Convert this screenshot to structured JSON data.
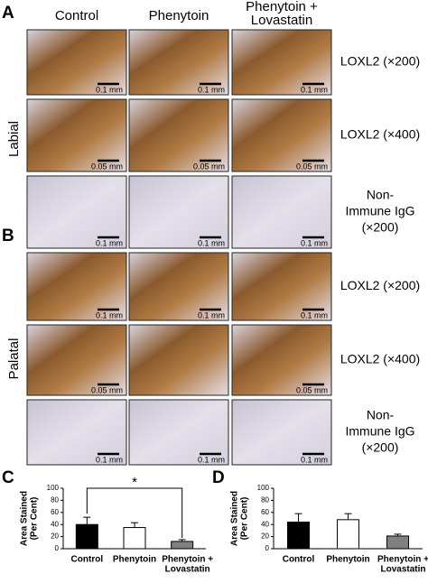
{
  "column_headers": [
    [
      "Control"
    ],
    [
      "Phenytoin"
    ],
    [
      "Phenytoin +",
      "Lovastatin"
    ]
  ],
  "tissue_panels": [
    {
      "letter": "A",
      "side_label": "Labial",
      "rows": [
        {
          "label": [
            "LOXL2 (×200)"
          ],
          "stain": "loxl2",
          "scale_bars": [
            "0.1 mm",
            "0.1 mm",
            "0.1 mm"
          ]
        },
        {
          "label": [
            "LOXL2 (×400)"
          ],
          "stain": "loxl2",
          "scale_bars": [
            "0.05 mm",
            "0.05 mm",
            "0.05 mm"
          ]
        },
        {
          "label": [
            "Non-",
            "Immune IgG",
            "(×200)"
          ],
          "stain": "igg",
          "scale_bars": [
            "0.1 mm",
            "0.1 mm",
            "0.1 mm"
          ]
        }
      ]
    },
    {
      "letter": "B",
      "side_label": "Palatal",
      "rows": [
        {
          "label": [
            "LOXL2 (×200)"
          ],
          "stain": "loxl2",
          "scale_bars": [
            "0.1 mm",
            "0.1 mm",
            "0.1 mm"
          ]
        },
        {
          "label": [
            "LOXL2 (×400)"
          ],
          "stain": "loxl2",
          "scale_bars": [
            "0.05 mm",
            null,
            "0.05 mm"
          ]
        },
        {
          "label": [
            "Non-",
            "Immune IgG",
            "(×200)"
          ],
          "stain": "igg",
          "scale_bars": [
            "0.1 mm",
            "0.1 mm",
            "0.1 mm"
          ]
        }
      ]
    }
  ],
  "chart_data": [
    {
      "type": "bar",
      "letter": "C",
      "ylabel": [
        "Area Stained",
        "(Per Cent)"
      ],
      "categories": [
        [
          "Control"
        ],
        [
          "Phenytoin"
        ],
        [
          "Phenytoin +",
          "Lovastatin"
        ]
      ],
      "values": [
        40,
        35,
        12
      ],
      "errors": [
        12,
        8,
        3
      ],
      "colors": [
        "#000000",
        "#ffffff",
        "#808080"
      ],
      "ylim": [
        0,
        100
      ],
      "yticks": [
        0,
        20,
        40,
        60,
        80,
        100
      ],
      "annotation": "*"
    },
    {
      "type": "bar",
      "letter": "D",
      "ylabel": [
        "Area Stained",
        "(Per Cent)"
      ],
      "categories": [
        [
          "Control"
        ],
        [
          "Phenytoin"
        ],
        [
          "Phenytoin +",
          "Lovastatin"
        ]
      ],
      "values": [
        44,
        48,
        21
      ],
      "errors": [
        14,
        10,
        3
      ],
      "colors": [
        "#000000",
        "#ffffff",
        "#808080"
      ],
      "ylim": [
        0,
        100
      ],
      "yticks": [
        0,
        20,
        40,
        60,
        80,
        100
      ]
    }
  ]
}
